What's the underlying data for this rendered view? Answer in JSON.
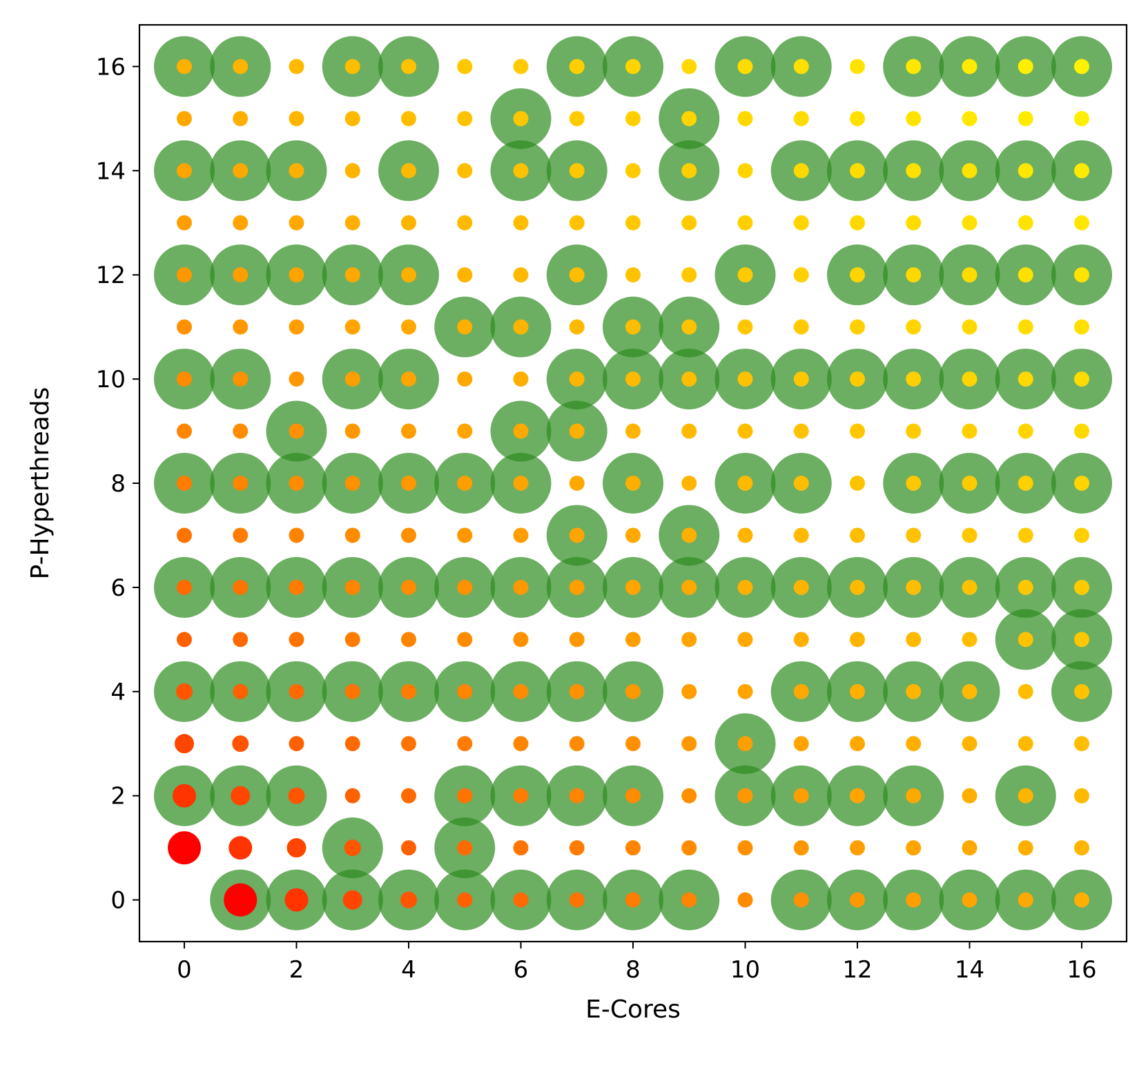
{
  "chart_data": {
    "type": "scatter",
    "title": "",
    "xlabel": "E-Cores",
    "ylabel": "P-Hyperthreads",
    "xlim": [
      -0.8,
      16.8
    ],
    "ylim": [
      -0.8,
      16.8
    ],
    "xticks": [
      0,
      2,
      4,
      6,
      8,
      10,
      12,
      14,
      16
    ],
    "yticks": [
      0,
      2,
      4,
      6,
      8,
      10,
      12,
      14,
      16
    ],
    "grid": false,
    "x_range": [
      0,
      16
    ],
    "y_range": [
      0,
      16
    ],
    "color_scale": {
      "min_color": "#ff0000",
      "max_color": "#fff200",
      "note": "dot color and size vary with E-Cores + P-Hyperthreads"
    },
    "highlight_color": "#2e8b1f",
    "highlighted_points": [
      [
        1,
        0
      ],
      [
        2,
        0
      ],
      [
        3,
        0
      ],
      [
        4,
        0
      ],
      [
        5,
        0
      ],
      [
        6,
        0
      ],
      [
        7,
        0
      ],
      [
        8,
        0
      ],
      [
        9,
        0
      ],
      [
        11,
        0
      ],
      [
        12,
        0
      ],
      [
        13,
        0
      ],
      [
        14,
        0
      ],
      [
        15,
        0
      ],
      [
        16,
        0
      ],
      [
        3,
        1
      ],
      [
        5,
        1
      ],
      [
        0,
        2
      ],
      [
        1,
        2
      ],
      [
        2,
        2
      ],
      [
        5,
        2
      ],
      [
        6,
        2
      ],
      [
        7,
        2
      ],
      [
        8,
        2
      ],
      [
        10,
        2
      ],
      [
        11,
        2
      ],
      [
        12,
        2
      ],
      [
        13,
        2
      ],
      [
        15,
        2
      ],
      [
        10,
        3
      ],
      [
        0,
        4
      ],
      [
        1,
        4
      ],
      [
        2,
        4
      ],
      [
        3,
        4
      ],
      [
        4,
        4
      ],
      [
        5,
        4
      ],
      [
        6,
        4
      ],
      [
        7,
        4
      ],
      [
        8,
        4
      ],
      [
        11,
        4
      ],
      [
        12,
        4
      ],
      [
        13,
        4
      ],
      [
        14,
        4
      ],
      [
        16,
        4
      ],
      [
        15,
        5
      ],
      [
        16,
        5
      ],
      [
        0,
        6
      ],
      [
        1,
        6
      ],
      [
        2,
        6
      ],
      [
        3,
        6
      ],
      [
        4,
        6
      ],
      [
        5,
        6
      ],
      [
        6,
        6
      ],
      [
        7,
        6
      ],
      [
        8,
        6
      ],
      [
        9,
        6
      ],
      [
        10,
        6
      ],
      [
        11,
        6
      ],
      [
        12,
        6
      ],
      [
        13,
        6
      ],
      [
        14,
        6
      ],
      [
        15,
        6
      ],
      [
        16,
        6
      ],
      [
        7,
        7
      ],
      [
        9,
        7
      ],
      [
        0,
        8
      ],
      [
        1,
        8
      ],
      [
        2,
        8
      ],
      [
        3,
        8
      ],
      [
        4,
        8
      ],
      [
        5,
        8
      ],
      [
        6,
        8
      ],
      [
        8,
        8
      ],
      [
        10,
        8
      ],
      [
        11,
        8
      ],
      [
        13,
        8
      ],
      [
        14,
        8
      ],
      [
        15,
        8
      ],
      [
        16,
        8
      ],
      [
        2,
        9
      ],
      [
        6,
        9
      ],
      [
        7,
        9
      ],
      [
        0,
        10
      ],
      [
        1,
        10
      ],
      [
        3,
        10
      ],
      [
        4,
        10
      ],
      [
        7,
        10
      ],
      [
        8,
        10
      ],
      [
        9,
        10
      ],
      [
        10,
        10
      ],
      [
        11,
        10
      ],
      [
        12,
        10
      ],
      [
        13,
        10
      ],
      [
        14,
        10
      ],
      [
        15,
        10
      ],
      [
        16,
        10
      ],
      [
        5,
        11
      ],
      [
        6,
        11
      ],
      [
        8,
        11
      ],
      [
        9,
        11
      ],
      [
        0,
        12
      ],
      [
        1,
        12
      ],
      [
        2,
        12
      ],
      [
        3,
        12
      ],
      [
        4,
        12
      ],
      [
        7,
        12
      ],
      [
        10,
        12
      ],
      [
        12,
        12
      ],
      [
        13,
        12
      ],
      [
        14,
        12
      ],
      [
        15,
        12
      ],
      [
        16,
        12
      ],
      [
        0,
        14
      ],
      [
        1,
        14
      ],
      [
        2,
        14
      ],
      [
        4,
        14
      ],
      [
        6,
        14
      ],
      [
        7,
        14
      ],
      [
        9,
        14
      ],
      [
        11,
        14
      ],
      [
        12,
        14
      ],
      [
        13,
        14
      ],
      [
        14,
        14
      ],
      [
        15,
        14
      ],
      [
        16,
        14
      ],
      [
        6,
        15
      ],
      [
        9,
        15
      ],
      [
        0,
        16
      ],
      [
        1,
        16
      ],
      [
        3,
        16
      ],
      [
        4,
        16
      ],
      [
        7,
        16
      ],
      [
        8,
        16
      ],
      [
        10,
        16
      ],
      [
        11,
        16
      ],
      [
        13,
        16
      ],
      [
        14,
        16
      ],
      [
        15,
        16
      ],
      [
        16,
        16
      ]
    ]
  }
}
